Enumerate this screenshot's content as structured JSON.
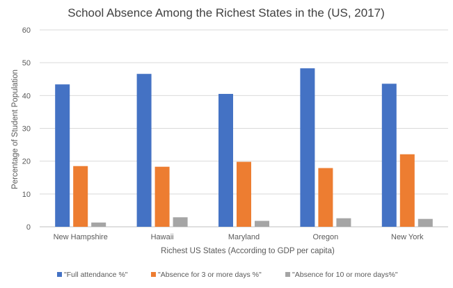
{
  "chart_data": {
    "type": "bar",
    "title": "School Absence Among the Richest States in the (US, 2017)",
    "xlabel": "Richest US States (According to GDP per capita)",
    "ylabel": "Percentage of Student Population",
    "ylim": [
      0,
      60
    ],
    "yticks": [
      0,
      10,
      20,
      30,
      40,
      50,
      60
    ],
    "grid": true,
    "legend_position": "bottom",
    "categories": [
      "New Hampshire",
      "Hawaii",
      "Maryland",
      "Oregon",
      "New York"
    ],
    "series": [
      {
        "name": "\"Full attendance %\"",
        "color": "#4472C4",
        "values": [
          43.4,
          46.6,
          40.5,
          48.3,
          43.6
        ]
      },
      {
        "name": "\"Absence for 3 or more days %\"",
        "color": "#ED7D31",
        "values": [
          18.5,
          18.3,
          19.8,
          17.9,
          22.1
        ]
      },
      {
        "name": "\"Absence for 10 or more days%\"",
        "color": "#A5A5A5",
        "values": [
          1.3,
          2.9,
          1.8,
          2.6,
          2.4
        ]
      }
    ]
  }
}
